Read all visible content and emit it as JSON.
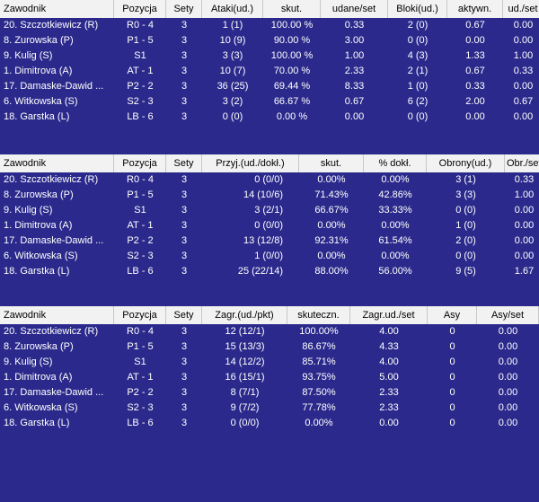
{
  "attack": {
    "headers": [
      "Zawodnik",
      "Pozycja",
      "Sety",
      "Ataki(ud.)",
      "skut.",
      "udane/set",
      "Bloki(ud.)",
      "aktywn.",
      "ud./set"
    ],
    "rows": [
      [
        "20. Szczotkiewicz (R)",
        "R0 - 4",
        "3",
        "1 (1)",
        "100.00 %",
        "0.33",
        "2 (0)",
        "0.67",
        "0.00"
      ],
      [
        "8. Zurowska (P)",
        "P1 - 5",
        "3",
        "10 (9)",
        "90.00 %",
        "3.00",
        "0 (0)",
        "0.00",
        "0.00"
      ],
      [
        "9. Kulig (S)",
        "S1",
        "3",
        "3 (3)",
        "100.00 %",
        "1.00",
        "4 (3)",
        "1.33",
        "1.00"
      ],
      [
        "1. Dimitrova (A)",
        "AT - 1",
        "3",
        "10 (7)",
        "70.00 %",
        "2.33",
        "2 (1)",
        "0.67",
        "0.33"
      ],
      [
        "17. Damaske-Dawid ...",
        "P2 - 2",
        "3",
        "36 (25)",
        "69.44 %",
        "8.33",
        "1 (0)",
        "0.33",
        "0.00"
      ],
      [
        "6. Witkowska (S)",
        "S2 - 3",
        "3",
        "3 (2)",
        "66.67 %",
        "0.67",
        "6 (2)",
        "2.00",
        "0.67"
      ],
      [
        "18. Garstka (L)",
        "LB - 6",
        "3",
        "0 (0)",
        "0.00 %",
        "0.00",
        "0 (0)",
        "0.00",
        "0.00"
      ]
    ]
  },
  "reception": {
    "headers": [
      "Zawodnik",
      "Pozycja",
      "Sety",
      "Przyj.(ud./dokł.)",
      "skut.",
      "% dokł.",
      "Obrony(ud.)",
      "Obr./set"
    ],
    "rows": [
      [
        "20. Szczotkiewicz (R)",
        "R0 - 4",
        "3",
        "0 (0/0)",
        "0.00%",
        "0.00%",
        "3 (1)",
        "0.33"
      ],
      [
        "8. Zurowska (P)",
        "P1 - 5",
        "3",
        "14 (10/6)",
        "71.43%",
        "42.86%",
        "3 (3)",
        "1.00"
      ],
      [
        "9. Kulig (S)",
        "S1",
        "3",
        "3 (2/1)",
        "66.67%",
        "33.33%",
        "0 (0)",
        "0.00"
      ],
      [
        "1. Dimitrova (A)",
        "AT - 1",
        "3",
        "0 (0/0)",
        "0.00%",
        "0.00%",
        "1 (0)",
        "0.00"
      ],
      [
        "17. Damaske-Dawid ...",
        "P2 - 2",
        "3",
        "13 (12/8)",
        "92.31%",
        "61.54%",
        "2 (0)",
        "0.00"
      ],
      [
        "6. Witkowska (S)",
        "S2 - 3",
        "3",
        "1 (0/0)",
        "0.00%",
        "0.00%",
        "0 (0)",
        "0.00"
      ],
      [
        "18. Garstka (L)",
        "LB - 6",
        "3",
        "25 (22/14)",
        "88.00%",
        "56.00%",
        "9 (5)",
        "1.67"
      ]
    ]
  },
  "serve": {
    "headers": [
      "Zawodnik",
      "Pozycja",
      "Sety",
      "Zagr.(ud./pkt)",
      "skuteczn.",
      "Zagr.ud./set",
      "Asy",
      "Asy/set"
    ],
    "rows": [
      [
        "20. Szczotkiewicz (R)",
        "R0 - 4",
        "3",
        "12 (12/1)",
        "100.00%",
        "4.00",
        "0",
        "0.00"
      ],
      [
        "8. Zurowska (P)",
        "P1 - 5",
        "3",
        "15 (13/3)",
        "86.67%",
        "4.33",
        "0",
        "0.00"
      ],
      [
        "9. Kulig (S)",
        "S1",
        "3",
        "14 (12/2)",
        "85.71%",
        "4.00",
        "0",
        "0.00"
      ],
      [
        "1. Dimitrova (A)",
        "AT - 1",
        "3",
        "16 (15/1)",
        "93.75%",
        "5.00",
        "0",
        "0.00"
      ],
      [
        "17. Damaske-Dawid ...",
        "P2 - 2",
        "3",
        "8 (7/1)",
        "87.50%",
        "2.33",
        "0",
        "0.00"
      ],
      [
        "6. Witkowska (S)",
        "S2 - 3",
        "3",
        "9 (7/2)",
        "77.78%",
        "2.33",
        "0",
        "0.00"
      ],
      [
        "18. Garstka (L)",
        "LB - 6",
        "3",
        "0 (0/0)",
        "0.00%",
        "0.00",
        "0",
        "0.00"
      ]
    ]
  },
  "colors": {
    "background": "#2b2a8c",
    "header_bg": "#f2f2f2",
    "text": "#ffffff",
    "header_text": "#000000"
  }
}
